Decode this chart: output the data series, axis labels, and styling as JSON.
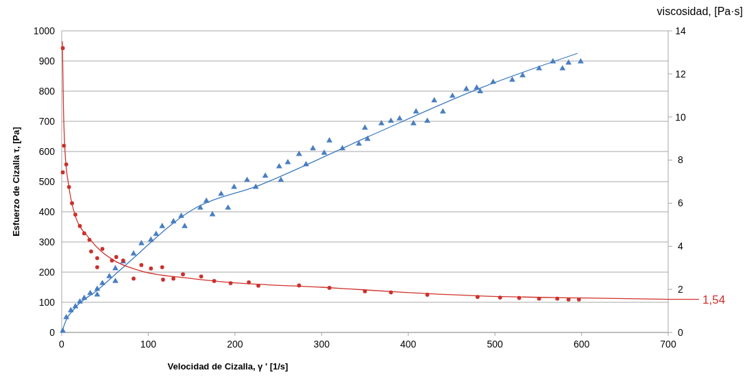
{
  "chart_data": {
    "type": "scatter",
    "xlabel": "Velocidad de Cizalla, γ ' [1/s]",
    "ylabel": "Esfuerzo de Cizalla τ, [Pa]",
    "y2label": "viscosidad, [Pa·s]",
    "xlim": [
      0,
      700
    ],
    "xticks": [
      0,
      100,
      200,
      300,
      400,
      500,
      600,
      700
    ],
    "ylim": [
      0,
      1000
    ],
    "yticks": [
      0,
      100,
      200,
      300,
      400,
      500,
      600,
      700,
      800,
      900,
      1000
    ],
    "y2lim": [
      0,
      14
    ],
    "y2ticks": [
      0,
      2,
      4,
      6,
      8,
      10,
      12,
      14
    ],
    "grid": "y",
    "series": [
      {
        "type": "scatter",
        "marker": "triangle",
        "color": "#4a7fc1",
        "x": [
          1.3,
          5.3,
          10.6,
          15.8,
          21,
          26,
          33,
          41,
          41,
          47,
          55,
          62,
          62,
          71,
          83,
          92,
          103,
          109,
          116,
          129,
          138,
          142,
          160,
          167,
          174,
          184,
          192,
          199,
          214,
          224,
          235,
          251,
          253,
          261,
          274,
          282,
          290,
          303,
          309,
          324,
          343,
          350,
          353,
          369,
          380,
          390,
          406,
          409,
          422,
          430,
          440,
          451,
          467,
          479,
          483,
          498,
          520,
          532,
          551,
          567,
          578,
          585,
          599
        ],
        "values": [
          5,
          50,
          73,
          86,
          102,
          114,
          130,
          125,
          144,
          163,
          186,
          170,
          212,
          235,
          261,
          295,
          307,
          326,
          352,
          368,
          386,
          352,
          413,
          436,
          391,
          459,
          413,
          482,
          505,
          482,
          519,
          550,
          505,
          564,
          591,
          557,
          610,
          595,
          636,
          610,
          625,
          678,
          641,
          693,
          701,
          709,
          693,
          732,
          701,
          769,
          732,
          784,
          807,
          811,
          799,
          830,
          837,
          852,
          875,
          898,
          875,
          894,
          898
        ]
      },
      {
        "type": "line",
        "marker": "none",
        "color": "#3a78c0",
        "x": [
          0,
          5,
          15,
          41,
          71,
          150,
          229,
          353,
          483,
          595
        ],
        "values": [
          0,
          40,
          80,
          140,
          216,
          405,
          489,
          648,
          810,
          925
        ]
      },
      {
        "type": "scatter",
        "marker": "circle",
        "axis": "y2",
        "color": "#c8322d",
        "x": [
          1.3,
          1.3,
          2.6,
          5.3,
          8.5,
          11.9,
          15.8,
          21,
          26,
          32,
          34,
          41,
          41,
          47,
          58,
          63,
          71,
          83,
          92,
          103,
          116,
          117,
          129,
          140,
          161,
          176,
          195,
          216,
          227,
          274,
          309,
          350,
          380,
          422,
          480,
          506,
          528,
          551,
          572,
          585,
          597
        ],
        "values": [
          13.2,
          7.43,
          8.67,
          7.8,
          6.75,
          6.0,
          5.47,
          4.94,
          4.6,
          4.3,
          3.76,
          3.45,
          3.03,
          3.88,
          3.34,
          3.5,
          3.34,
          2.5,
          3.13,
          2.97,
          3.03,
          2.45,
          2.5,
          2.7,
          2.6,
          2.39,
          2.29,
          2.33,
          2.17,
          2.18,
          2.07,
          1.91,
          1.86,
          1.75,
          1.65,
          1.62,
          1.6,
          1.57,
          1.57,
          1.53,
          1.53
        ]
      },
      {
        "type": "line",
        "marker": "none",
        "axis": "y2",
        "color": "#d0302a",
        "x": [
          0.8,
          2,
          4,
          8,
          15,
          32,
          58,
          85,
          150,
          200,
          300,
          400,
          480,
          600,
          700
        ],
        "values": [
          13.5,
          10.5,
          8.3,
          6.85,
          5.5,
          4.36,
          3.4,
          2.93,
          2.5,
          2.3,
          2.1,
          1.85,
          1.7,
          1.6,
          1.54
        ]
      }
    ],
    "ref_lines": [
      {
        "axis": "y2",
        "value": 1.54,
        "label": "1,54",
        "color": "#d0302a"
      }
    ]
  }
}
